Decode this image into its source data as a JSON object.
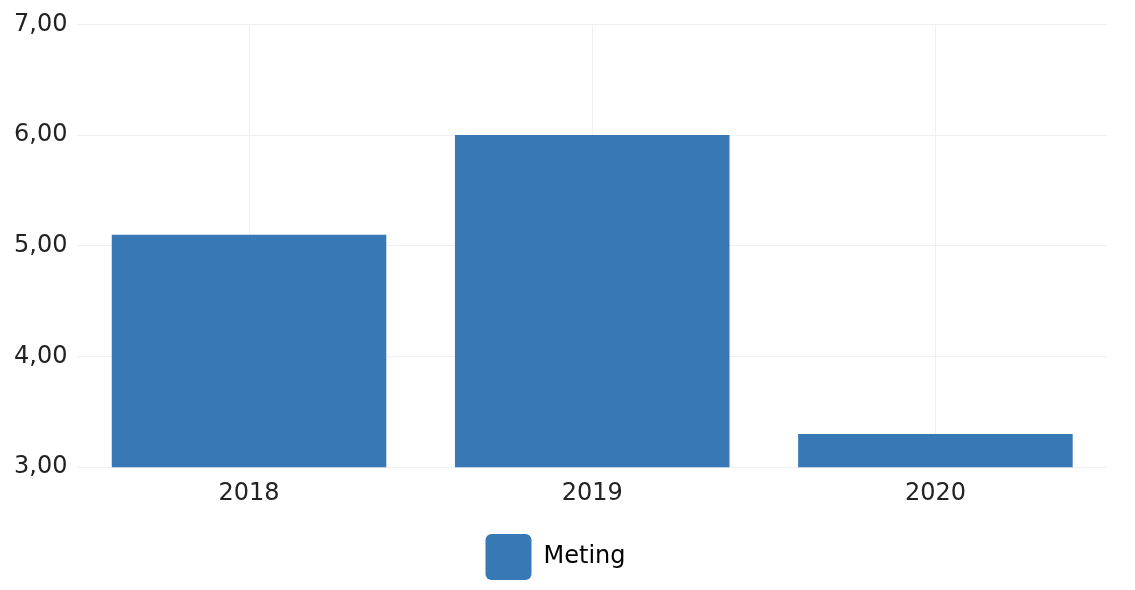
{
  "chart_data": {
    "type": "bar",
    "categories": [
      "2018",
      "2019",
      "2020"
    ],
    "series": [
      {
        "name": "Meting",
        "color": "#3878b4",
        "values": [
          5.1,
          6.0,
          3.3
        ]
      }
    ],
    "ylim": [
      3,
      7
    ],
    "yticks": [
      {
        "value": 3,
        "label": "3,00"
      },
      {
        "value": 4,
        "label": "4,00"
      },
      {
        "value": 5,
        "label": "5,00"
      },
      {
        "value": 6,
        "label": "6,00"
      },
      {
        "value": 7,
        "label": "7,00"
      }
    ],
    "grid": true,
    "legend": "bottom"
  }
}
